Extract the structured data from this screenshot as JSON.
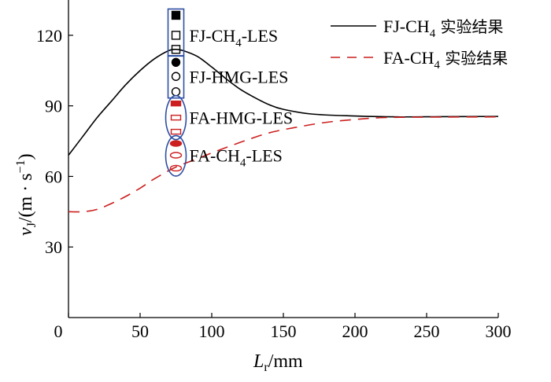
{
  "chart_data": {
    "type": "line",
    "xlabel": "L",
    "xlabel_sub": "r",
    "xlabel_unit": "/mm",
    "ylabel": "v",
    "ylabel_sub": "J",
    "ylabel_unit": "/(m · s",
    "ylabel_unit_sup": "−1",
    "ylabel_unit_end": ")",
    "xlim": [
      0,
      300
    ],
    "ylim": [
      0,
      135
    ],
    "xticks": [
      0,
      50,
      100,
      150,
      200,
      250,
      300
    ],
    "yticks": [
      30,
      60,
      90,
      120
    ],
    "grid": false,
    "legend_placement": "top-right",
    "series": [
      {
        "name": "FJ-CH4 实验结果",
        "label_main": "FJ-CH",
        "label_sub": "4",
        "label_cn": " 实验结果",
        "color": "#000000",
        "style": "solid",
        "x": [
          0,
          10,
          20,
          30,
          40,
          50,
          60,
          70,
          75,
          80,
          90,
          100,
          110,
          120,
          130,
          140,
          150,
          170,
          200,
          230,
          260,
          300
        ],
        "y": [
          69,
          77,
          85,
          92,
          99,
          105,
          110,
          113.5,
          114,
          113.5,
          111,
          106.5,
          101.5,
          97,
          93.5,
          90.5,
          88.5,
          86.5,
          85.7,
          85.3,
          85.4,
          85.5
        ]
      },
      {
        "name": "FA-CH4 实验结果",
        "label_main": "FA-CH",
        "label_sub": "4",
        "label_cn": " 实验结果",
        "color": "#cc1f1f",
        "style": "dashed",
        "x": [
          0,
          10,
          20,
          30,
          40,
          50,
          60,
          75,
          90,
          100,
          120,
          140,
          160,
          180,
          200,
          220,
          250,
          300
        ],
        "y": [
          45,
          45,
          46,
          48.5,
          51.5,
          55,
          59,
          64,
          67.5,
          70,
          74.5,
          78.5,
          81,
          83,
          84.2,
          85,
          85.2,
          85.3
        ]
      }
    ],
    "scatter_groups": [
      {
        "name": "FJ-CH4-LES",
        "label_main": "FJ-CH",
        "label_sub": "4",
        "label_end": "-LES",
        "marker": "square",
        "color": "#000000",
        "box": "rect",
        "x": 75,
        "y": [
          128.5,
          120,
          114
        ],
        "filled": [
          true,
          false,
          false
        ]
      },
      {
        "name": "FJ-HMG-LES",
        "label_main": "FJ-HMG-LES",
        "marker": "circle",
        "color": "#000000",
        "box": "rect",
        "x": 75,
        "y": [
          108.5,
          102.5,
          96
        ],
        "filled": [
          true,
          false,
          false
        ]
      },
      {
        "name": "FA-HMG-LES",
        "label_main": "FA-HMG-LES",
        "marker": "flat-rect",
        "color": "#cc1f1f",
        "box": "ellipse",
        "x": 75,
        "y": [
          91,
          85,
          79
        ],
        "filled": [
          true,
          false,
          false
        ]
      },
      {
        "name": "FA-CH4-LES",
        "label_main": "FA-CH",
        "label_sub": "4",
        "label_end": "-LES",
        "marker": "ellipse",
        "color": "#cc1f1f",
        "box": "ellipse",
        "x": 75,
        "y": [
          74,
          69,
          63.5
        ],
        "filled": [
          true,
          false,
          false
        ]
      }
    ],
    "box_color": "#2e4fa3"
  }
}
